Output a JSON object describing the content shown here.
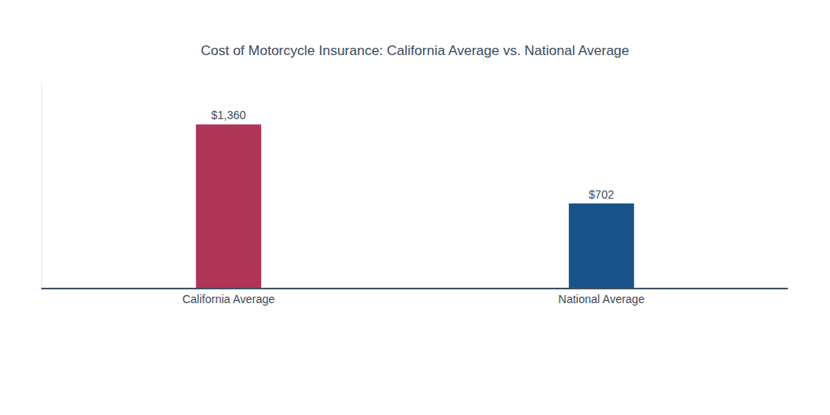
{
  "chart_data": {
    "type": "bar",
    "title": "Cost of Motorcycle Insurance: California Average vs. National Average",
    "categories": [
      "California Average",
      "National Average"
    ],
    "values": [
      1360,
      702
    ],
    "value_labels": [
      "$1,360",
      "$702"
    ],
    "colors": [
      "#b03358",
      "#1a538a"
    ],
    "ylim": [
      0,
      1700
    ],
    "data_labels": true,
    "tick_labels": "x",
    "grid": false
  }
}
